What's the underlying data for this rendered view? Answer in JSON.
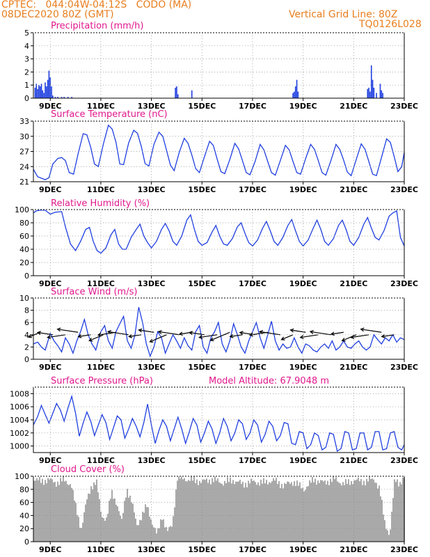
{
  "header": {
    "line1": "CPTEC:   044:04W-04:12S   CODO (MA)",
    "line2": "08DEC2020 80Z (GMT)",
    "grid_note": "Vertical Grid Line: 80Z",
    "code": "TQ0126L028"
  },
  "x_ticks": [
    "9DEC",
    "11DEC",
    "13DEC",
    "15DEC",
    "17DEC",
    "19DEC",
    "21DEC",
    "23DEC"
  ],
  "colors": {
    "line": "#1f3fe0",
    "title": "#e0188c",
    "header": "#e87e1e",
    "cloud": "#a9a9a9",
    "wind": "#000000"
  },
  "chart_data": [
    {
      "id": "precip",
      "type": "bar",
      "title": "Precipitation (mm/h)",
      "ylim": [
        0,
        5
      ],
      "yticks": [
        "0",
        "1",
        "2",
        "3",
        "4",
        "5"
      ],
      "x_range_days": [
        8.33,
        23.0
      ],
      "values": [
        [
          8.4,
          0.8
        ],
        [
          8.45,
          1.1
        ],
        [
          8.5,
          0.7
        ],
        [
          8.55,
          1.0
        ],
        [
          8.6,
          0.9
        ],
        [
          8.65,
          1.1
        ],
        [
          8.7,
          0.6
        ],
        [
          8.75,
          0.4
        ],
        [
          8.8,
          1.2
        ],
        [
          8.85,
          0.9
        ],
        [
          8.9,
          1.4
        ],
        [
          8.95,
          2.1
        ],
        [
          9.0,
          1.6
        ],
        [
          9.05,
          0.9
        ],
        [
          9.1,
          0.2
        ],
        [
          9.2,
          0.1
        ],
        [
          9.3,
          0.1
        ],
        [
          9.45,
          0.1
        ],
        [
          9.55,
          0.1
        ],
        [
          9.7,
          0.1
        ],
        [
          9.85,
          0.1
        ],
        [
          13.95,
          0.8
        ],
        [
          14.0,
          0.9
        ],
        [
          14.05,
          0.3
        ],
        [
          14.6,
          0.6
        ],
        [
          18.6,
          0.4
        ],
        [
          18.65,
          0.5
        ],
        [
          18.7,
          0.9
        ],
        [
          18.75,
          1.4
        ],
        [
          18.8,
          0.5
        ],
        [
          21.55,
          0.7
        ],
        [
          21.6,
          0.8
        ],
        [
          21.65,
          0.5
        ],
        [
          21.7,
          2.5
        ],
        [
          21.75,
          1.4
        ],
        [
          21.8,
          0.8
        ],
        [
          21.9,
          0.4
        ],
        [
          22.05,
          1.1
        ],
        [
          22.1,
          0.6
        ],
        [
          22.15,
          0.4
        ]
      ]
    },
    {
      "id": "temp",
      "type": "line",
      "title": "Surface Temperature (nC)",
      "ylim": [
        21,
        33
      ],
      "yticks": [
        "21",
        "24",
        "27",
        "30",
        "33"
      ],
      "x": [
        8.33,
        8.5,
        8.7,
        8.8,
        8.95,
        9.1,
        9.3,
        9.45,
        9.6,
        9.75,
        9.92,
        10.1,
        10.3,
        10.45,
        10.6,
        10.75,
        10.9,
        11.1,
        11.3,
        11.45,
        11.6,
        11.75,
        11.9,
        12.1,
        12.3,
        12.45,
        12.6,
        12.75,
        12.9,
        13.1,
        13.3,
        13.45,
        13.6,
        13.75,
        13.9,
        14.1,
        14.3,
        14.45,
        14.6,
        14.75,
        14.9,
        15.1,
        15.3,
        15.45,
        15.6,
        15.75,
        15.9,
        16.1,
        16.3,
        16.45,
        16.6,
        16.75,
        16.9,
        17.1,
        17.3,
        17.45,
        17.6,
        17.75,
        17.9,
        18.1,
        18.3,
        18.45,
        18.6,
        18.75,
        18.9,
        19.1,
        19.3,
        19.45,
        19.6,
        19.75,
        19.9,
        20.1,
        20.3,
        20.45,
        20.6,
        20.75,
        20.9,
        21.1,
        21.3,
        21.45,
        21.6,
        21.75,
        21.9,
        22.1,
        22.3,
        22.45,
        22.6,
        22.75,
        22.9,
        23.0
      ],
      "y": [
        23.5,
        22.0,
        21.6,
        21.4,
        21.8,
        24.5,
        25.6,
        25.8,
        25.2,
        22.8,
        22.5,
        26.5,
        30.5,
        30.3,
        27.8,
        24.5,
        24.0,
        28.5,
        32.2,
        31.4,
        28.8,
        24.5,
        24.4,
        28.7,
        31.2,
        30.6,
        28.0,
        24.6,
        24.1,
        28.4,
        30.8,
        30.0,
        27.2,
        24.3,
        23.2,
        26.8,
        29.6,
        28.6,
        26.3,
        23.6,
        22.8,
        26.0,
        29.0,
        28.2,
        25.5,
        23.0,
        22.6,
        25.4,
        28.6,
        27.5,
        25.2,
        22.8,
        22.4,
        25.0,
        28.4,
        27.3,
        25.0,
        22.8,
        22.3,
        25.2,
        28.2,
        27.3,
        25.0,
        22.8,
        22.5,
        25.6,
        28.4,
        27.4,
        25.2,
        22.8,
        22.3,
        25.2,
        28.4,
        27.4,
        25.3,
        22.9,
        22.2,
        25.4,
        28.5,
        27.4,
        25.0,
        22.5,
        22.2,
        25.8,
        29.5,
        28.8,
        26.0,
        23.0,
        24.0,
        26.8
      ]
    },
    {
      "id": "rh",
      "type": "line",
      "title": "Relative Humidity (%)",
      "ylim": [
        0,
        100
      ],
      "yticks": [
        "0",
        "20",
        "40",
        "60",
        "80",
        "100"
      ],
      "x": [
        8.33,
        8.45,
        8.6,
        8.8,
        9.0,
        9.2,
        9.45,
        9.6,
        9.8,
        10.0,
        10.2,
        10.4,
        10.55,
        10.7,
        10.85,
        11.0,
        11.2,
        11.4,
        11.55,
        11.7,
        11.85,
        12.0,
        12.2,
        12.4,
        12.55,
        12.7,
        12.85,
        13.0,
        13.2,
        13.4,
        13.55,
        13.7,
        13.85,
        14.0,
        14.2,
        14.4,
        14.55,
        14.7,
        14.85,
        15.0,
        15.2,
        15.4,
        15.55,
        15.7,
        15.85,
        16.0,
        16.2,
        16.4,
        16.55,
        16.7,
        16.85,
        17.0,
        17.2,
        17.4,
        17.55,
        17.7,
        17.85,
        18.0,
        18.2,
        18.4,
        18.55,
        18.7,
        18.85,
        19.0,
        19.2,
        19.4,
        19.55,
        19.7,
        19.85,
        20.0,
        20.2,
        20.4,
        20.55,
        20.7,
        20.85,
        21.0,
        21.2,
        21.4,
        21.55,
        21.7,
        21.85,
        22.0,
        22.2,
        22.4,
        22.55,
        22.7,
        22.85,
        23.0
      ],
      "y": [
        95,
        98,
        99,
        99,
        93,
        96,
        97,
        74,
        48,
        38,
        52,
        70,
        73,
        52,
        38,
        34,
        42,
        62,
        70,
        48,
        40,
        40,
        58,
        70,
        78,
        60,
        50,
        42,
        52,
        70,
        79,
        68,
        52,
        46,
        60,
        84,
        92,
        70,
        52,
        46,
        50,
        66,
        76,
        60,
        48,
        46,
        56,
        74,
        80,
        64,
        50,
        45,
        54,
        72,
        82,
        68,
        52,
        46,
        58,
        76,
        85,
        68,
        52,
        45,
        54,
        72,
        84,
        70,
        52,
        46,
        56,
        76,
        84,
        70,
        52,
        46,
        58,
        78,
        88,
        72,
        58,
        54,
        68,
        90,
        95,
        98,
        58,
        45
      ]
    },
    {
      "id": "wind",
      "type": "line",
      "title": "Surface Wind (m/s)",
      "ylim": [
        0,
        10
      ],
      "yticks": [
        "0",
        "2",
        "4",
        "6",
        "8",
        "10"
      ],
      "x": [
        8.33,
        8.5,
        8.65,
        8.8,
        9.0,
        9.15,
        9.3,
        9.45,
        9.6,
        9.75,
        9.9,
        10.05,
        10.2,
        10.35,
        10.5,
        10.65,
        10.8,
        11.0,
        11.15,
        11.3,
        11.45,
        11.6,
        11.75,
        11.9,
        12.05,
        12.2,
        12.35,
        12.5,
        12.65,
        12.8,
        12.95,
        13.1,
        13.25,
        13.4,
        13.55,
        13.7,
        13.85,
        14.0,
        14.15,
        14.3,
        14.45,
        14.6,
        14.75,
        14.9,
        15.05,
        15.2,
        15.35,
        15.5,
        15.65,
        15.8,
        15.95,
        16.1,
        16.25,
        16.4,
        16.55,
        16.7,
        16.85,
        17.0,
        17.15,
        17.3,
        17.45,
        17.6,
        17.75,
        17.9,
        18.05,
        18.2,
        18.35,
        18.5,
        18.65,
        18.8,
        18.95,
        19.1,
        19.25,
        19.4,
        19.55,
        19.7,
        19.85,
        20.0,
        20.15,
        20.3,
        20.45,
        20.6,
        20.75,
        20.9,
        21.05,
        21.2,
        21.35,
        21.5,
        21.65,
        21.8,
        21.95,
        22.1,
        22.25,
        22.4,
        22.55,
        22.7,
        22.85,
        23.0
      ],
      "y": [
        2.5,
        2.8,
        2.0,
        1.5,
        4.2,
        3.0,
        2.2,
        1.2,
        3.5,
        2.5,
        1.0,
        3.0,
        4.5,
        6.5,
        4.0,
        2.5,
        1.5,
        4.5,
        5.5,
        3.0,
        1.8,
        4.5,
        5.8,
        7.0,
        3.0,
        1.8,
        4.0,
        8.5,
        6.0,
        2.5,
        0.5,
        2.0,
        4.5,
        3.5,
        1.0,
        2.5,
        4.0,
        3.0,
        1.8,
        3.5,
        2.2,
        1.5,
        4.5,
        5.5,
        2.0,
        1.0,
        3.5,
        4.5,
        6.0,
        2.5,
        1.2,
        3.0,
        5.8,
        4.0,
        2.0,
        1.0,
        3.0,
        4.5,
        6.0,
        3.5,
        1.8,
        4.0,
        6.2,
        3.0,
        1.5,
        2.5,
        1.8,
        2.0,
        3.5,
        2.0,
        1.0,
        2.5,
        2.2,
        1.5,
        1.2,
        2.0,
        2.5,
        1.8,
        3.0,
        1.5,
        2.0,
        3.0,
        2.0,
        1.8,
        2.5,
        3.0,
        2.0,
        1.5,
        2.0,
        4.0,
        3.2,
        2.5,
        3.5,
        3.0,
        4.0,
        2.8,
        3.5,
        3.2
      ]
    },
    {
      "id": "pressure",
      "type": "line",
      "title": "Surface Pressure (hPa)",
      "annotation": "Model Altitude: 67.9048 m",
      "ylim": [
        999,
        1009
      ],
      "yticks": [
        "1000",
        "1002",
        "1004",
        "1006",
        "1008"
      ],
      "x": [
        8.33,
        8.5,
        8.65,
        8.8,
        8.95,
        9.1,
        9.25,
        9.4,
        9.55,
        9.7,
        9.85,
        10.0,
        10.15,
        10.3,
        10.45,
        10.6,
        10.75,
        10.9,
        11.05,
        11.2,
        11.35,
        11.5,
        11.65,
        11.8,
        11.95,
        12.1,
        12.25,
        12.4,
        12.55,
        12.7,
        12.85,
        13.0,
        13.15,
        13.3,
        13.45,
        13.6,
        13.75,
        13.9,
        14.05,
        14.2,
        14.35,
        14.5,
        14.65,
        14.8,
        14.95,
        15.1,
        15.25,
        15.4,
        15.55,
        15.7,
        15.85,
        16.0,
        16.15,
        16.3,
        16.45,
        16.6,
        16.75,
        16.9,
        17.05,
        17.2,
        17.35,
        17.5,
        17.65,
        17.8,
        17.95,
        18.1,
        18.25,
        18.4,
        18.55,
        18.7,
        18.85,
        19.0,
        19.15,
        19.3,
        19.45,
        19.6,
        19.75,
        19.9,
        20.05,
        20.2,
        20.35,
        20.5,
        20.65,
        20.8,
        20.95,
        21.1,
        21.25,
        21.4,
        21.55,
        21.7,
        21.85,
        22.0,
        22.15,
        22.3,
        22.45,
        22.6,
        22.75,
        22.9,
        23.0
      ],
      "y": [
        1003.2,
        1004.5,
        1006.2,
        1004.8,
        1003.5,
        1005.0,
        1006.5,
        1005.5,
        1003.8,
        1005.8,
        1007.6,
        1005.0,
        1001.5,
        1003.5,
        1005.2,
        1003.8,
        1001.6,
        1003.2,
        1004.8,
        1003.6,
        1001.0,
        1002.8,
        1004.6,
        1004.0,
        1001.2,
        1002.6,
        1004.2,
        1003.0,
        1001.4,
        1003.6,
        1006.4,
        1003.2,
        1000.4,
        1002.4,
        1004.0,
        1003.0,
        1000.8,
        1002.6,
        1004.4,
        1002.6,
        1000.4,
        1002.2,
        1004.2,
        1003.2,
        1000.6,
        1002.0,
        1003.8,
        1002.6,
        1000.4,
        1002.0,
        1004.2,
        1003.0,
        1000.8,
        1002.0,
        1004.0,
        1003.4,
        1001.0,
        1002.0,
        1004.0,
        1003.2,
        1000.6,
        1001.8,
        1003.8,
        1003.0,
        1000.8,
        1001.6,
        1003.6,
        1003.4,
        1000.4,
        1000.2,
        1002.2,
        1002.0,
        999.6,
        1000.2,
        1002.0,
        1001.6,
        999.4,
        999.8,
        1002.0,
        1001.8,
        999.2,
        999.6,
        1002.2,
        1002.0,
        999.4,
        999.6,
        1002.0,
        1002.0,
        999.4,
        999.8,
        1002.2,
        1002.2,
        999.4,
        999.6,
        1002.0,
        1002.2,
        999.8,
        999.4,
        1000.2
      ]
    },
    {
      "id": "cloud",
      "type": "area",
      "title": "Cloud Cover (%)",
      "ylim": [
        0,
        100
      ],
      "yticks": [
        "0",
        "20",
        "40",
        "60",
        "80",
        "100"
      ],
      "x": [
        8.33,
        8.6,
        8.9,
        9.2,
        9.5,
        9.8,
        10.0,
        10.2,
        10.4,
        10.6,
        10.8,
        11.0,
        11.2,
        11.4,
        11.6,
        11.8,
        12.0,
        12.2,
        12.4,
        12.6,
        12.8,
        13.0,
        13.2,
        13.4,
        13.6,
        13.8,
        14.0,
        14.3,
        14.6,
        15.0,
        15.4,
        15.8,
        16.2,
        16.6,
        17.0,
        17.4,
        17.8,
        18.2,
        18.6,
        19.0,
        19.4,
        19.8,
        20.2,
        20.6,
        21.0,
        21.4,
        21.8,
        22.0,
        22.2,
        22.4,
        22.6,
        22.8,
        23.0
      ],
      "y": [
        96,
        92,
        95,
        90,
        94,
        88,
        50,
        20,
        60,
        85,
        92,
        40,
        35,
        75,
        60,
        30,
        82,
        60,
        25,
        40,
        55,
        30,
        10,
        40,
        15,
        25,
        98,
        96,
        94,
        92,
        95,
        90,
        94,
        88,
        92,
        90,
        94,
        86,
        92,
        80,
        95,
        90,
        96,
        88,
        94,
        92,
        96,
        80,
        30,
        10,
        95,
        90,
        98
      ]
    }
  ]
}
